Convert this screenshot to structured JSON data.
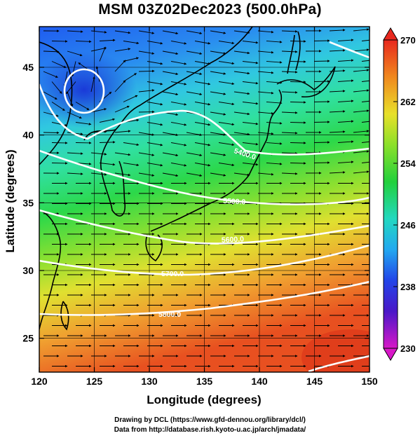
{
  "title": "MSM 03Z02Dec2023 (500.0hPa)",
  "axes": {
    "xlabel": "Longitude (degrees)",
    "ylabel": "Latitude  (degrees)",
    "xlim": [
      120,
      150
    ],
    "ylim": [
      22.5,
      48
    ],
    "xticks": [
      120,
      125,
      130,
      135,
      140,
      145,
      150
    ],
    "yticks": [
      25,
      30,
      35,
      40,
      45
    ]
  },
  "colorbar": {
    "min": 230,
    "max": 270,
    "labels": [
      270,
      262,
      254,
      246,
      238,
      230
    ]
  },
  "contours": [
    {
      "label": "5400.0"
    },
    {
      "label": "5500.0"
    },
    {
      "label": "5600.0"
    },
    {
      "label": "5700.0"
    },
    {
      "label": "5800.0"
    }
  ],
  "credits": {
    "line1": "Drawing by DCL (https://www.gfd-dennou.org/library/dcl/)",
    "line2": "Data from http://database.rish.kyoto-u.ac.jp/arch/jmadata/"
  },
  "colors": {
    "field_cold": "#1040e0",
    "field_mid": "#20e040",
    "field_warm": "#e03020",
    "contour": "#ffffff",
    "vectors": "#000000"
  }
}
